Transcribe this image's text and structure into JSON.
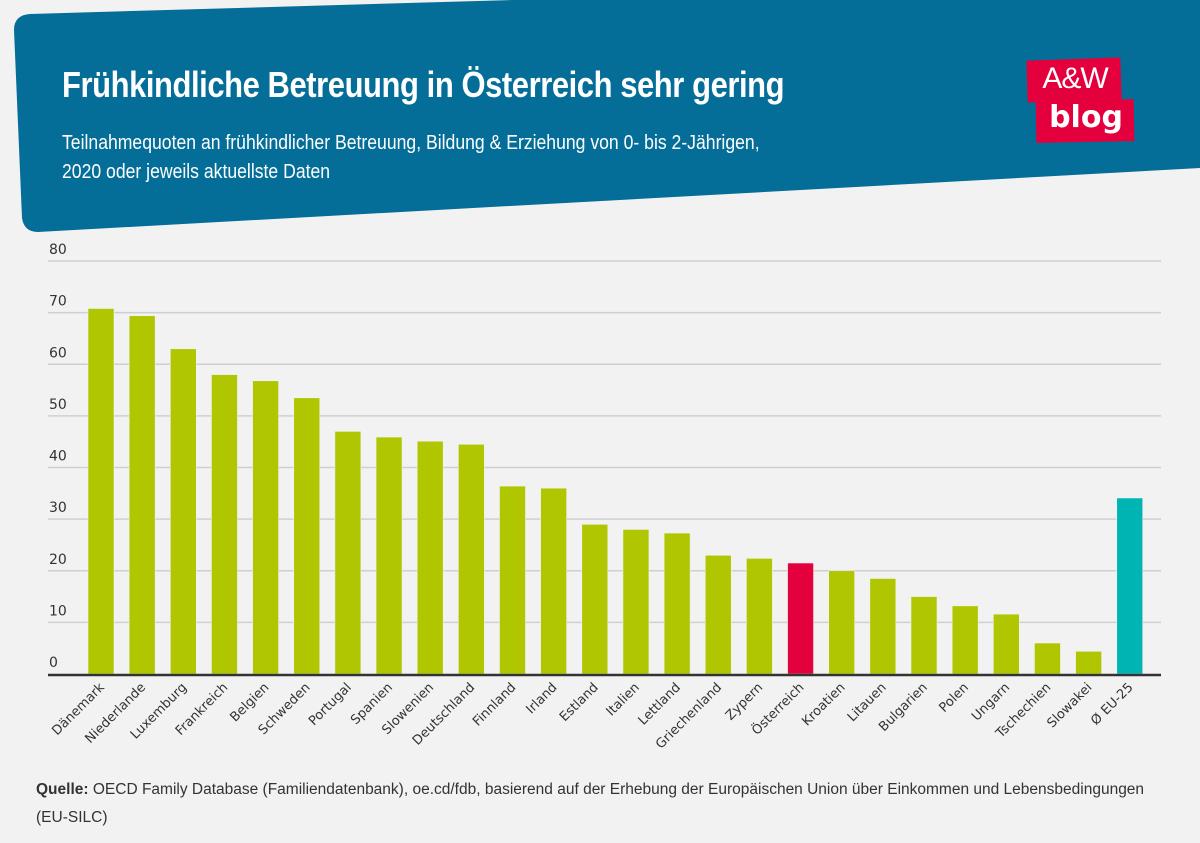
{
  "header": {
    "title": "Frühkindliche Betreuung in Österreich sehr gering",
    "subtitle_line1": "Teilnahmequoten an frühkindlicher Betreuung, Bildung & Erziehung von 0- bis 2-Jährigen,",
    "subtitle_line2": "2020 oder jeweils aktuellste Daten",
    "background_color": "#046e99"
  },
  "logo": {
    "line1": "A&W",
    "line2": "blog",
    "color": "#e4003d"
  },
  "source": {
    "label": "Quelle:",
    "text": " OECD Family Database (Familiendatenbank), oe.cd/fdb, basierend auf der Erhebung der Europäischen Union über Einkommen und Lebensbedingungen (EU-SILC)"
  },
  "chart_data": {
    "type": "bar",
    "title": "Frühkindliche Betreuung in Österreich sehr gering",
    "xlabel": "",
    "ylabel": "",
    "ylim": [
      0,
      80
    ],
    "yticks": [
      0,
      10,
      20,
      30,
      40,
      50,
      60,
      70,
      80
    ],
    "grid": true,
    "legend": "none",
    "categories": [
      "Dänemark",
      "Niederlande",
      "Luxemburg",
      "Frankreich",
      "Belgien",
      "Schweden",
      "Portugal",
      "Spanien",
      "Slowenien",
      "Deutschland",
      "Finnland",
      "Irland",
      "Estland",
      "Italien",
      "Lettland",
      "Griechenland",
      "Zypern",
      "Österreich",
      "Kroatien",
      "Litauen",
      "Bulgarien",
      "Polen",
      "Ungarn",
      "Tschechien",
      "Slowakei",
      "Ø EU-25"
    ],
    "values": [
      70.8,
      69.4,
      63.0,
      58.0,
      56.8,
      53.5,
      47.0,
      45.9,
      45.1,
      44.5,
      36.4,
      36.0,
      29.0,
      28.0,
      27.3,
      23.0,
      22.4,
      21.5,
      20.0,
      18.5,
      15.0,
      13.2,
      11.6,
      6.0,
      4.4,
      34.1
    ],
    "colors": {
      "default": "#afc600",
      "highlight": "#e4003d",
      "average": "#00b4b4"
    },
    "highlight_category": "Österreich",
    "average_category": "Ø EU-25"
  }
}
